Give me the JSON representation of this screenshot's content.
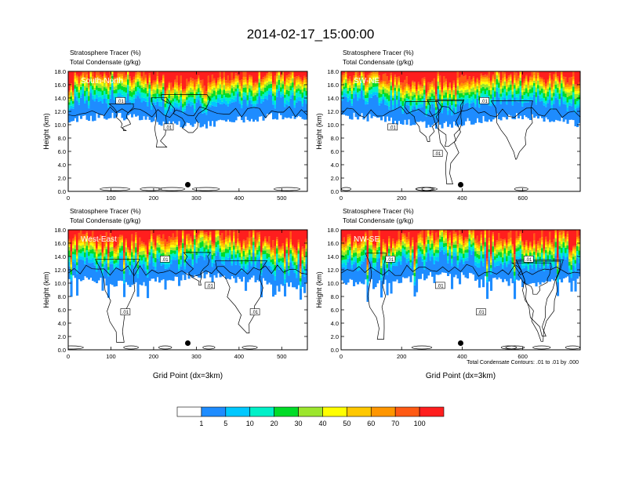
{
  "figure": {
    "title": "2014-02-17_15:00:00",
    "footnote": "Total Condensate Contours: .01 to .01 by .000"
  },
  "chart_data": [
    {
      "type": "heatmap",
      "panel": "top-left",
      "label": "South-North",
      "title_line1": "Stratosphere Tracer   (%)",
      "title_line2": "Total Condensate   (g/kg)",
      "ylabel": "Height (km)",
      "xlabel": "",
      "xlim": [
        0,
        560
      ],
      "ylim": [
        0,
        18
      ],
      "xticks": [
        "0",
        "100",
        "200",
        "300",
        "400",
        "500"
      ],
      "xtick_values": [
        0,
        100,
        200,
        300,
        400,
        500
      ],
      "yticks": [
        "0.0",
        "2.0",
        "4.0",
        "6.0",
        "8.0",
        "10.0",
        "12.0",
        "14.0",
        "16.0",
        "18.0"
      ],
      "contour_labels": [
        ".01",
        ".01"
      ],
      "marker_x": 280
    },
    {
      "type": "heatmap",
      "panel": "top-right",
      "label": "SW-NE",
      "title_line1": "Stratosphere Tracer   (%)",
      "title_line2": "Total Condensate   (g/kg)",
      "ylabel": "Height (km)",
      "xlabel": "",
      "xlim": [
        0,
        790
      ],
      "ylim": [
        0,
        18
      ],
      "xticks": [
        "0",
        "200",
        "400",
        "600"
      ],
      "xtick_values": [
        0,
        200,
        400,
        600
      ],
      "yticks": [
        "0.0",
        "2.0",
        "4.0",
        "6.0",
        "8.0",
        "10.0",
        "12.0",
        "14.0",
        "16.0",
        "18.0"
      ],
      "contour_labels": [
        ".01",
        ".01",
        ".01"
      ],
      "marker_x": 395
    },
    {
      "type": "heatmap",
      "panel": "bottom-left",
      "label": "West-East",
      "title_line1": "Stratosphere Tracer   (%)",
      "title_line2": "Total Condensate   (g/kg)",
      "ylabel": "Height (km)",
      "xlabel": "Grid Point (dx=3km)",
      "xlim": [
        0,
        560
      ],
      "ylim": [
        0,
        18
      ],
      "xticks": [
        "0",
        "100",
        "200",
        "300",
        "400",
        "500"
      ],
      "xtick_values": [
        0,
        100,
        200,
        300,
        400,
        500
      ],
      "yticks": [
        "0.0",
        "2.0",
        "4.0",
        "6.0",
        "8.0",
        "10.0",
        "12.0",
        "14.0",
        "16.0",
        "18.0"
      ],
      "contour_labels": [
        ".01",
        ".01",
        ".01",
        ".01"
      ],
      "marker_x": 280
    },
    {
      "type": "heatmap",
      "panel": "bottom-right",
      "label": "NW-SE",
      "title_line1": "Stratosphere Tracer   (%)",
      "title_line2": "Total Condensate   (g/kg)",
      "ylabel": "Height (km)",
      "xlabel": "Grid Point (dx=3km)",
      "xlim": [
        0,
        790
      ],
      "ylim": [
        0,
        18
      ],
      "xticks": [
        "0",
        "200",
        "400",
        "600"
      ],
      "xtick_values": [
        0,
        200,
        400,
        600
      ],
      "yticks": [
        "0.0",
        "2.0",
        "4.0",
        "6.0",
        "8.0",
        "10.0",
        "12.0",
        "14.0",
        "16.0",
        "18.0"
      ],
      "contour_labels": [
        ".01",
        ".01",
        ".01",
        ".01"
      ],
      "marker_x": 395
    }
  ],
  "colorbar": {
    "ticks": [
      "1",
      "5",
      "10",
      "20",
      "30",
      "40",
      "50",
      "60",
      "70",
      "100"
    ],
    "colors": [
      "#ffffff",
      "#1e8cff",
      "#00c8ff",
      "#00f0c8",
      "#00dc28",
      "#9ce62d",
      "#ffff00",
      "#ffc800",
      "#ff9600",
      "#ff5a14",
      "#ff1e1e"
    ]
  }
}
